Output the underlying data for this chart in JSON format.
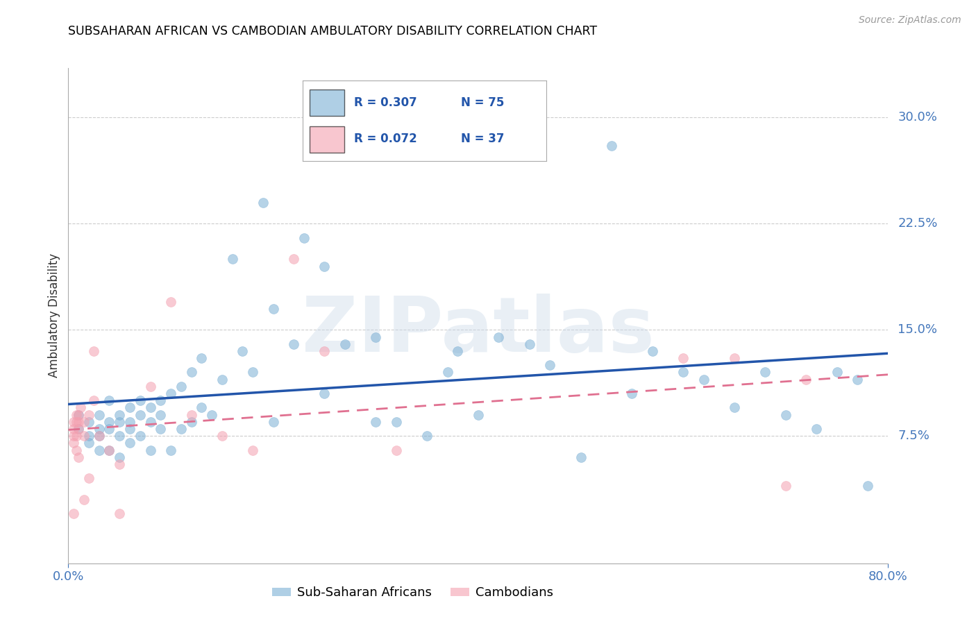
{
  "title": "SUBSAHARAN AFRICAN VS CAMBODIAN AMBULATORY DISABILITY CORRELATION CHART",
  "source": "Source: ZipAtlas.com",
  "ylabel": "Ambulatory Disability",
  "ytick_labels": [
    "7.5%",
    "15.0%",
    "22.5%",
    "30.0%"
  ],
  "ytick_values": [
    0.075,
    0.15,
    0.225,
    0.3
  ],
  "xlim": [
    0.0,
    0.8
  ],
  "ylim": [
    -0.015,
    0.335
  ],
  "legend_blue_r": "R = 0.307",
  "legend_blue_n": "N = 75",
  "legend_pink_r": "R = 0.072",
  "legend_pink_n": "N = 37",
  "blue_color": "#7BAFD4",
  "pink_color": "#F4A0B0",
  "blue_line_color": "#2255AA",
  "pink_line_color": "#E07090",
  "watermark": "ZIPatlas",
  "blue_scatter_x": [
    0.01,
    0.01,
    0.02,
    0.02,
    0.02,
    0.03,
    0.03,
    0.03,
    0.03,
    0.04,
    0.04,
    0.04,
    0.04,
    0.05,
    0.05,
    0.05,
    0.05,
    0.06,
    0.06,
    0.06,
    0.06,
    0.07,
    0.07,
    0.07,
    0.08,
    0.08,
    0.08,
    0.09,
    0.09,
    0.09,
    0.1,
    0.1,
    0.11,
    0.11,
    0.12,
    0.12,
    0.13,
    0.13,
    0.14,
    0.15,
    0.16,
    0.17,
    0.18,
    0.19,
    0.2,
    0.2,
    0.22,
    0.23,
    0.25,
    0.25,
    0.27,
    0.28,
    0.3,
    0.3,
    0.32,
    0.35,
    0.37,
    0.38,
    0.4,
    0.42,
    0.45,
    0.47,
    0.5,
    0.53,
    0.55,
    0.57,
    0.6,
    0.62,
    0.65,
    0.68,
    0.7,
    0.73,
    0.75,
    0.77,
    0.78
  ],
  "blue_scatter_y": [
    0.09,
    0.08,
    0.085,
    0.075,
    0.07,
    0.09,
    0.08,
    0.075,
    0.065,
    0.1,
    0.085,
    0.08,
    0.065,
    0.09,
    0.085,
    0.075,
    0.06,
    0.095,
    0.085,
    0.08,
    0.07,
    0.1,
    0.09,
    0.075,
    0.095,
    0.085,
    0.065,
    0.1,
    0.09,
    0.08,
    0.105,
    0.065,
    0.11,
    0.08,
    0.12,
    0.085,
    0.13,
    0.095,
    0.09,
    0.115,
    0.2,
    0.135,
    0.12,
    0.24,
    0.165,
    0.085,
    0.14,
    0.215,
    0.195,
    0.105,
    0.14,
    0.28,
    0.145,
    0.085,
    0.085,
    0.075,
    0.12,
    0.135,
    0.09,
    0.145,
    0.14,
    0.125,
    0.06,
    0.28,
    0.105,
    0.135,
    0.12,
    0.115,
    0.095,
    0.12,
    0.09,
    0.08,
    0.12,
    0.115,
    0.04
  ],
  "pink_scatter_x": [
    0.005,
    0.005,
    0.005,
    0.005,
    0.005,
    0.008,
    0.008,
    0.008,
    0.008,
    0.01,
    0.01,
    0.01,
    0.01,
    0.012,
    0.015,
    0.015,
    0.015,
    0.02,
    0.02,
    0.025,
    0.025,
    0.03,
    0.04,
    0.05,
    0.05,
    0.08,
    0.1,
    0.12,
    0.15,
    0.18,
    0.22,
    0.25,
    0.32,
    0.6,
    0.65,
    0.7,
    0.72
  ],
  "pink_scatter_y": [
    0.085,
    0.08,
    0.075,
    0.07,
    0.02,
    0.09,
    0.085,
    0.075,
    0.065,
    0.09,
    0.085,
    0.08,
    0.06,
    0.095,
    0.085,
    0.075,
    0.03,
    0.09,
    0.045,
    0.1,
    0.135,
    0.075,
    0.065,
    0.055,
    0.02,
    0.11,
    0.17,
    0.09,
    0.075,
    0.065,
    0.2,
    0.135,
    0.065,
    0.13,
    0.13,
    0.04,
    0.115
  ]
}
